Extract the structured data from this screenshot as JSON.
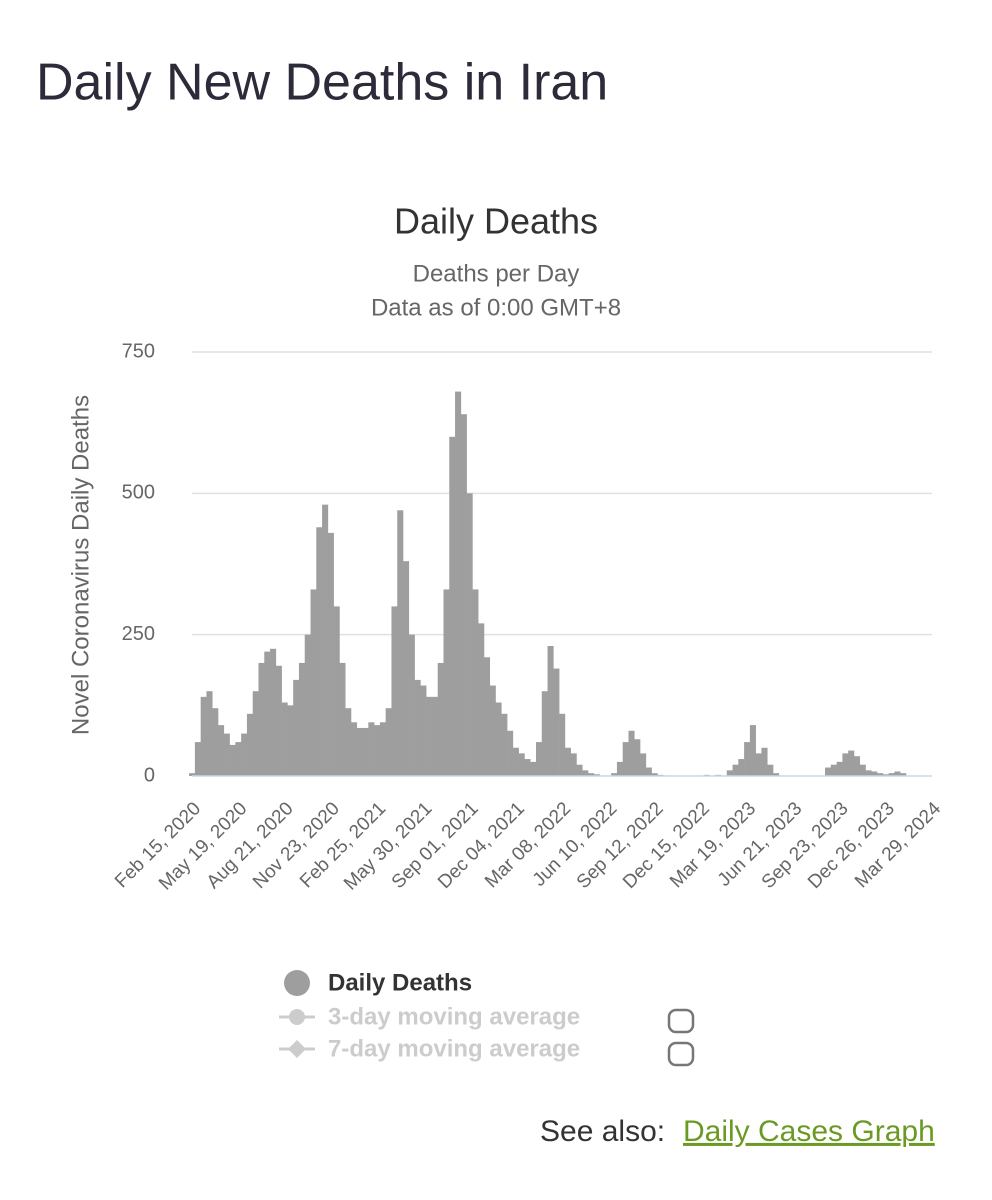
{
  "header": {
    "title": "Daily New Deaths in Iran"
  },
  "chart_data": {
    "type": "bar",
    "title": "Daily Deaths",
    "subtitle": [
      "Deaths per Day",
      "Data as of 0:00 GMT+8"
    ],
    "y_label": "Novel Coronavirus Daily Deaths",
    "categories": [
      "Feb 15, 2020",
      null,
      null,
      null,
      null,
      null,
      null,
      null,
      "May 19, 2020",
      null,
      null,
      null,
      null,
      null,
      null,
      null,
      "Aug 21, 2020",
      null,
      null,
      null,
      null,
      null,
      null,
      null,
      "Nov 23, 2020",
      null,
      null,
      null,
      null,
      null,
      null,
      null,
      "Feb 25, 2021",
      null,
      null,
      null,
      null,
      null,
      null,
      null,
      "May 30, 2021",
      null,
      null,
      null,
      null,
      null,
      null,
      null,
      "Sep 01, 2021",
      null,
      null,
      null,
      null,
      null,
      null,
      null,
      "Dec 04, 2021",
      null,
      null,
      null,
      null,
      null,
      null,
      null,
      "Mar 08, 2022",
      null,
      null,
      null,
      null,
      null,
      null,
      null,
      "Jun 10, 2022",
      null,
      null,
      null,
      null,
      null,
      null,
      null,
      "Sep 12, 2022",
      null,
      null,
      null,
      null,
      null,
      null,
      null,
      "Dec 15, 2022",
      null,
      null,
      null,
      null,
      null,
      null,
      null,
      "Mar 19, 2023",
      null,
      null,
      null,
      null,
      null,
      null,
      null,
      "Jun 21, 2023",
      null,
      null,
      null,
      null,
      null,
      null,
      null,
      "Sep 23, 2023",
      null,
      null,
      null,
      null,
      null,
      null,
      null,
      "Dec 26, 2023",
      null,
      null,
      null,
      null,
      null,
      null,
      null,
      "Mar 29, 2024"
    ],
    "series": [
      {
        "name": "Daily Deaths",
        "color": "#9e9e9e",
        "values": [
          5,
          60,
          140,
          150,
          120,
          90,
          75,
          55,
          60,
          75,
          110,
          150,
          200,
          220,
          225,
          195,
          130,
          125,
          170,
          200,
          250,
          330,
          440,
          480,
          430,
          300,
          200,
          120,
          95,
          85,
          85,
          95,
          90,
          95,
          120,
          300,
          470,
          380,
          250,
          170,
          160,
          140,
          140,
          200,
          330,
          600,
          680,
          640,
          500,
          330,
          270,
          210,
          160,
          130,
          110,
          80,
          50,
          40,
          30,
          25,
          60,
          150,
          230,
          190,
          110,
          50,
          40,
          20,
          10,
          5,
          3,
          1,
          0,
          5,
          25,
          60,
          80,
          65,
          40,
          15,
          5,
          2,
          1,
          0,
          0,
          0,
          0,
          0,
          0,
          2,
          0,
          2,
          0,
          10,
          20,
          30,
          60,
          90,
          40,
          50,
          20,
          5,
          0,
          0,
          0,
          0,
          0,
          0,
          0,
          0,
          15,
          20,
          25,
          40,
          45,
          35,
          20,
          10,
          8,
          5,
          3,
          5,
          8,
          5,
          0,
          0,
          0,
          0,
          0
        ]
      }
    ],
    "hidden_series": [
      "3-day moving average",
      "7-day moving average"
    ],
    "ylim": [
      0,
      750
    ],
    "yticks": [
      0,
      250,
      500,
      750
    ],
    "grid": true
  },
  "footer": {
    "see_also": "See also:",
    "link": "Daily Cases Graph"
  }
}
